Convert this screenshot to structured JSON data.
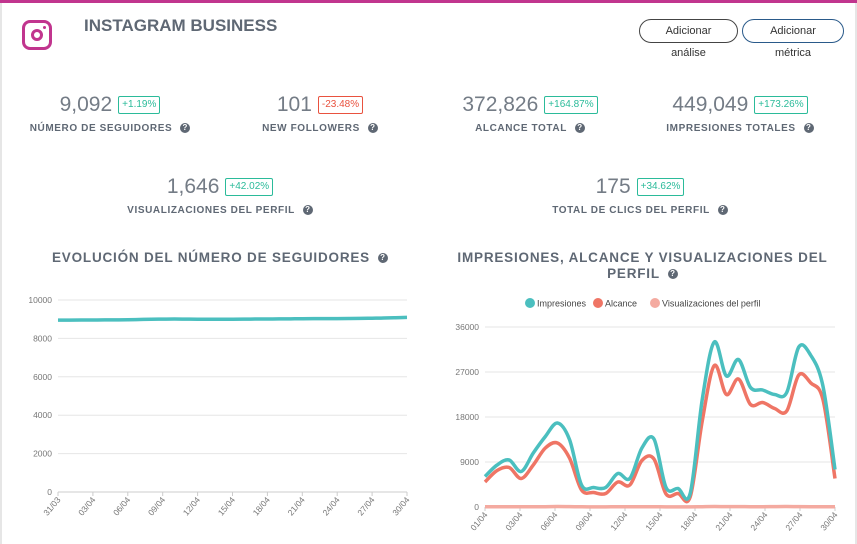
{
  "header": {
    "title": "INSTAGRAM BUSINESS",
    "add_analysis": "Adicionar análise",
    "add_metric": "Adicionar métrica",
    "brand_color": "#c1358e",
    "icon": "instagram-icon"
  },
  "stats": [
    {
      "value": "9,092",
      "change": "+1.19%",
      "label": "NÚMERO DE SEGUIDORES",
      "trend": "positive"
    },
    {
      "value": "101",
      "change": "-23.48%",
      "label": "NEW FOLLOWERS",
      "trend": "negative"
    },
    {
      "value": "372,826",
      "change": "+164.87%",
      "label": "ALCANCE TOTAL",
      "trend": "positive"
    },
    {
      "value": "449,049",
      "change": "+173.26%",
      "label": "IMPRESIONES TOTALES",
      "trend": "positive"
    },
    {
      "value": "1,646",
      "change": "+42.02%",
      "label": "VISUALIZACIONES DEL PERFIL",
      "trend": "positive"
    },
    {
      "value": "175",
      "change": "+34.62%",
      "label": "TOTAL DE CLICS DEL PERFIL",
      "trend": "positive"
    }
  ],
  "chart_data": [
    {
      "type": "line",
      "title": "EVOLUCIÓN DEL NÚMERO DE SEGUIDORES",
      "ylim": [
        0,
        10000
      ],
      "yticks": [
        0,
        2000,
        4000,
        6000,
        8000,
        10000
      ],
      "xtick_labels": [
        "31/03",
        "03/04",
        "06/04",
        "09/04",
        "12/04",
        "15/04",
        "18/04",
        "21/04",
        "24/04",
        "27/04",
        "30/04"
      ],
      "series": [
        {
          "color": "#4bbfbf",
          "values": [
            8950,
            8955,
            8958,
            8960,
            8962,
            8965,
            8970,
            8985,
            9000,
            9005,
            9010,
            9005,
            9000,
            8998,
            8998,
            9000,
            9003,
            9008,
            9012,
            9015,
            9020,
            9025,
            9028,
            9030,
            9032,
            9035,
            9040,
            9050,
            9060,
            9075,
            9092
          ]
        }
      ],
      "grid": true
    },
    {
      "type": "line",
      "title": "IMPRESIONES, ALCANCE Y VISUALIZACIONES DEL PERFIL",
      "ylim": [
        0,
        36000
      ],
      "yticks": [
        0,
        9000,
        18000,
        27000,
        36000
      ],
      "xtick_labels": [
        "01/04",
        "03/04",
        "06/04",
        "09/04",
        "12/04",
        "15/04",
        "18/04",
        "21/04",
        "24/04",
        "27/04",
        "30/04"
      ],
      "legend": "top",
      "grid": true,
      "series": [
        {
          "name": "Impresiones",
          "color": "#4bbfbf",
          "values": [
            6100,
            8400,
            9400,
            7100,
            10800,
            14100,
            16800,
            13500,
            4400,
            3900,
            3900,
            6700,
            5700,
            11800,
            13600,
            3900,
            3700,
            2700,
            21500,
            33000,
            26200,
            29500,
            23900,
            23400,
            22500,
            22900,
            32000,
            30300,
            24200,
            7500
          ]
        },
        {
          "name": "Alcance",
          "color": "#ef7565",
          "values": [
            5000,
            7300,
            7900,
            5700,
            8400,
            11800,
            12800,
            9800,
            3400,
            2900,
            2700,
            5000,
            4400,
            9300,
            9600,
            2600,
            2700,
            2000,
            17200,
            28300,
            22500,
            25600,
            20500,
            20900,
            19700,
            19200,
            26400,
            24800,
            21500,
            5700
          ]
        },
        {
          "name": "Visualizaciones del perfil",
          "color": "#f4aaa0",
          "values": [
            40,
            45,
            50,
            45,
            55,
            60,
            90,
            70,
            40,
            35,
            35,
            45,
            40,
            55,
            60,
            35,
            30,
            25,
            60,
            90,
            70,
            75,
            60,
            60,
            80,
            90,
            70,
            60,
            55,
            40
          ]
        }
      ]
    }
  ]
}
